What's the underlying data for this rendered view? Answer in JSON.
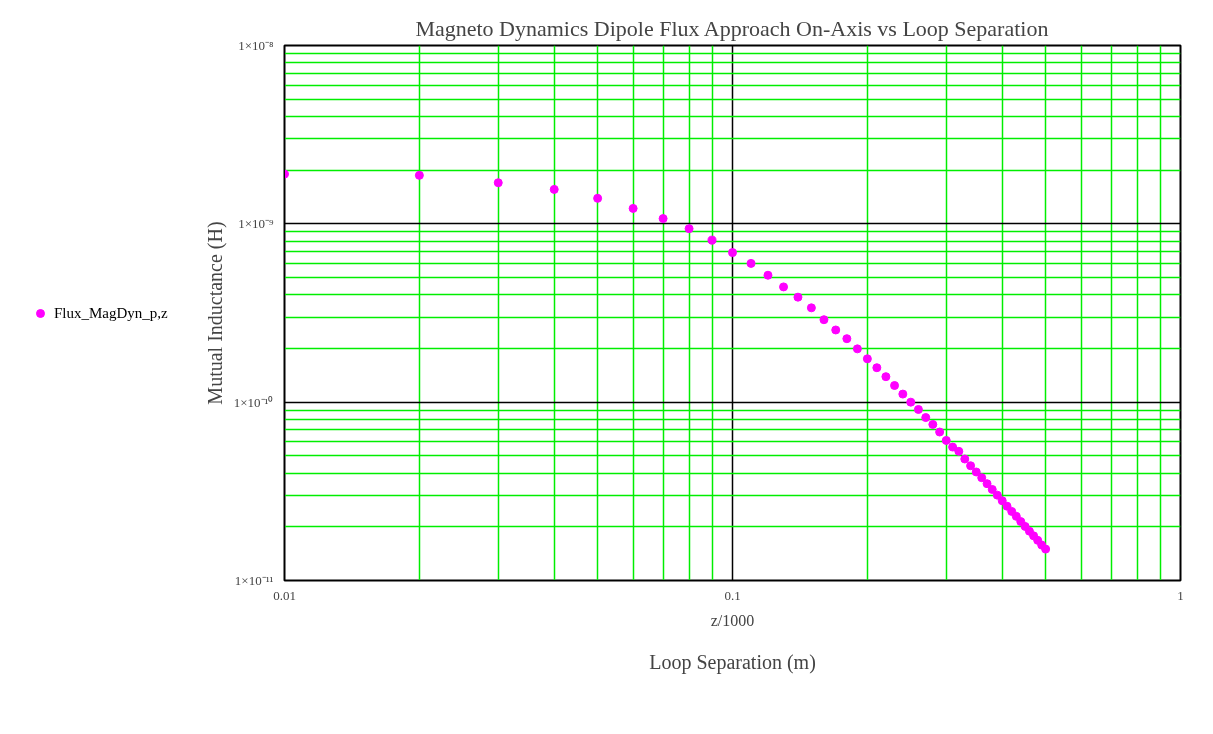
{
  "chart_data": {
    "type": "scatter",
    "title": "Magneto Dynamics Dipole Flux Approach On-Axis vs Loop Separation",
    "xlabel": "Loop Separation (m)",
    "ylabel": "Mutual Inductance (H)",
    "annotations": [
      "z/1000"
    ],
    "log": "xy",
    "grid": true,
    "legend": "left",
    "marker": "circle",
    "xlim": [
      0.01,
      1
    ],
    "ylim": [
      1e-11,
      1e-08
    ],
    "xticks": [
      0.01,
      {
        "value": 0.02,
        "label": null
      },
      {
        "value": 0.03,
        "label": null
      },
      {
        "value": 0.04,
        "label": null
      },
      {
        "value": 0.05,
        "label": null
      },
      {
        "value": 0.06,
        "label": null
      },
      {
        "value": 0.07,
        "label": null
      },
      {
        "value": 0.08,
        "label": null
      },
      {
        "value": 0.09,
        "label": null
      },
      0.1,
      {
        "value": 0.2,
        "label": null
      },
      {
        "value": 0.3,
        "label": null
      },
      {
        "value": 0.4,
        "label": null
      },
      {
        "value": 0.5,
        "label": null
      },
      {
        "value": 0.6,
        "label": null
      },
      {
        "value": 0.7,
        "label": null
      },
      {
        "value": 0.8,
        "label": null
      },
      {
        "value": 0.9,
        "label": null
      },
      1
    ],
    "yticks": [
      {
        "value": 1e-11,
        "label": "1×10⁻¹¹"
      },
      {
        "value": 2e-11,
        "label": null
      },
      {
        "value": 3e-11,
        "label": null
      },
      {
        "value": 4e-11,
        "label": null
      },
      {
        "value": 5e-11,
        "label": null
      },
      {
        "value": 6e-11,
        "label": null
      },
      {
        "value": 7e-11,
        "label": null
      },
      {
        "value": 8e-11,
        "label": null
      },
      {
        "value": 9e-11,
        "label": null
      },
      {
        "value": 1e-10,
        "label": "1×10⁻¹⁰"
      },
      {
        "value": 2e-10,
        "label": null
      },
      {
        "value": 3e-10,
        "label": null
      },
      {
        "value": 4e-10,
        "label": null
      },
      {
        "value": 5e-10,
        "label": null
      },
      {
        "value": 6e-10,
        "label": null
      },
      {
        "value": 7e-10,
        "label": null
      },
      {
        "value": 8e-10,
        "label": null
      },
      {
        "value": 9e-10,
        "label": null
      },
      {
        "value": 1e-09,
        "label": "1×10⁻⁹"
      },
      {
        "value": 2e-09,
        "label": null
      },
      {
        "value": 3e-09,
        "label": null
      },
      {
        "value": 4e-09,
        "label": null
      },
      {
        "value": 5e-09,
        "label": null
      },
      {
        "value": 6e-09,
        "label": null
      },
      {
        "value": 7e-09,
        "label": null
      },
      {
        "value": 8e-09,
        "label": null
      },
      {
        "value": 9e-09,
        "label": null
      },
      {
        "value": 1e-08,
        "label": "1×10⁻⁸"
      }
    ],
    "x": [
      0.01,
      0.02,
      0.03,
      0.04,
      0.05,
      0.06,
      0.07,
      0.08,
      0.09,
      0.1,
      0.11,
      0.12,
      0.13,
      0.14,
      0.15,
      0.16,
      0.17,
      0.18,
      0.19,
      0.2,
      0.21,
      0.22,
      0.23,
      0.24,
      0.25,
      0.26,
      0.27,
      0.28,
      0.29,
      0.3,
      0.31,
      0.32,
      0.33,
      0.34,
      0.35,
      0.36,
      0.37,
      0.38,
      0.39,
      0.4,
      0.41,
      0.42,
      0.43,
      0.44,
      0.45,
      0.46,
      0.47,
      0.48,
      0.49,
      0.5
    ],
    "series": [
      {
        "name": "Flux_MagDyn_p,z",
        "color": "#ff00ff",
        "values": [
          1.9e-09,
          1.87e-09,
          1.7e-09,
          1.56e-09,
          1.39e-09,
          1.22e-09,
          1.07e-09,
          9.4e-10,
          8.1e-10,
          6.9e-10,
          6e-10,
          5.15e-10,
          4.43e-10,
          3.88e-10,
          3.38e-10,
          2.9e-10,
          2.54e-10,
          2.27e-10,
          1.99e-10,
          1.75e-10,
          1.56e-10,
          1.39e-10,
          1.24e-10,
          1.11e-10,
          1e-10,
          9.1e-11,
          8.2e-11,
          7.5e-11,
          6.8e-11,
          6.1e-11,
          5.6e-11,
          5.3e-11,
          4.8e-11,
          4.4e-11,
          4.06e-11,
          3.77e-11,
          3.49e-11,
          3.24e-11,
          3.01e-11,
          2.8e-11,
          2.61e-11,
          2.44e-11,
          2.29e-11,
          2.14e-11,
          2.01e-11,
          1.89e-11,
          1.78e-11,
          1.68e-11,
          1.58e-11,
          1.5e-11
        ]
      }
    ]
  }
}
